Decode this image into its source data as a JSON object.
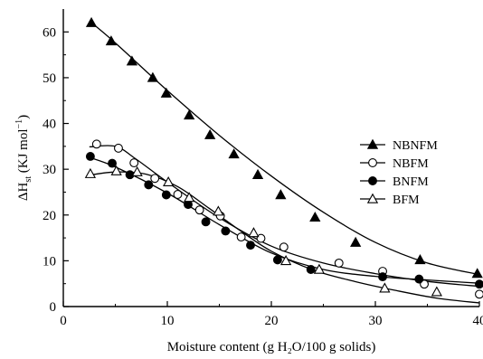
{
  "chart_data": {
    "type": "scatter",
    "xlabel": "Moisture content (g H₂O/100 g solids)",
    "ylabel": "ΔH",
    "ylabel_sub": "st",
    "ylabel_unit": " (KJ mol",
    "ylabel_sup": "−1",
    "ylabel_close": ")",
    "xlim": [
      0,
      40
    ],
    "ylim": [
      0,
      65
    ],
    "xticks": [
      0,
      10,
      20,
      30,
      40
    ],
    "yticks": [
      0,
      10,
      20,
      30,
      40,
      50,
      60
    ],
    "grid": false,
    "legend_position": "right",
    "series": [
      {
        "name": "NBNFM",
        "marker": "filled-triangle",
        "x": [
          2.7,
          4.6,
          6.6,
          8.6,
          9.9,
          12.1,
          14.1,
          16.4,
          18.7,
          20.9,
          24.2,
          28.1,
          34.3,
          39.8
        ],
        "y": [
          62,
          58,
          53.6,
          50,
          46.6,
          41.8,
          37.5,
          33.3,
          28.8,
          24.4,
          19.5,
          14,
          10.2,
          7.2
        ],
        "fit": [
          [
            2.5,
            62.4
          ],
          [
            5,
            57.6
          ],
          [
            10,
            47.2
          ],
          [
            15,
            37.4
          ],
          [
            20,
            28.5
          ],
          [
            25,
            20.6
          ],
          [
            30,
            14
          ],
          [
            35,
            9.5
          ],
          [
            40,
            7
          ]
        ]
      },
      {
        "name": "NBFM",
        "marker": "open-circle",
        "x": [
          3.2,
          5.3,
          6.8,
          8.8,
          11.0,
          13.1,
          15.1,
          17.1,
          19.0,
          21.2,
          26.5,
          30.7,
          34.7,
          40.0
        ],
        "y": [
          35.5,
          34.6,
          31.4,
          28,
          24.5,
          21.1,
          19.8,
          15.2,
          14.9,
          13,
          9.5,
          7.7,
          4.9,
          2.7
        ],
        "fit": [
          [
            2.5,
            34.9
          ],
          [
            5,
            35
          ],
          [
            7,
            32.2
          ],
          [
            10,
            27.2
          ],
          [
            15,
            19.4
          ],
          [
            20,
            13.2
          ],
          [
            25,
            9.5
          ],
          [
            30,
            7.2
          ],
          [
            35,
            5.5
          ],
          [
            40,
            4.4
          ]
        ]
      },
      {
        "name": "BNFM",
        "marker": "filled-circle",
        "x": [
          2.6,
          4.7,
          6.4,
          8.2,
          9.9,
          12.0,
          13.7,
          15.6,
          18.0,
          20.6,
          23.8,
          30.7,
          34.2,
          40.0
        ],
        "y": [
          32.8,
          31.3,
          28.8,
          26.6,
          24.4,
          22.3,
          18.5,
          16.5,
          13.4,
          10.2,
          8.1,
          6.5,
          6,
          4.9
        ],
        "fit": [
          [
            2.5,
            32.6
          ],
          [
            5,
            30.5
          ],
          [
            10,
            24.8
          ],
          [
            15,
            17.9
          ],
          [
            20,
            11.7
          ],
          [
            25,
            8.1
          ],
          [
            30,
            6.6
          ],
          [
            35,
            5.8
          ],
          [
            40,
            5.1
          ]
        ]
      },
      {
        "name": "BFM",
        "marker": "open-triangle",
        "x": [
          2.6,
          5.1,
          7.1,
          10.1,
          12.1,
          14.9,
          18.3,
          21.4,
          24.6,
          30.9,
          35.9
        ],
        "y": [
          29,
          29.6,
          29.4,
          27.2,
          23.8,
          20.8,
          16.1,
          10,
          8.1,
          4,
          3.2
        ],
        "fit": [
          [
            2.5,
            28.7
          ],
          [
            5,
            29.4
          ],
          [
            8,
            28.9
          ],
          [
            11,
            26.2
          ],
          [
            14,
            21.5
          ],
          [
            17,
            16.6
          ],
          [
            20,
            12.1
          ],
          [
            24,
            8
          ],
          [
            28,
            5.5
          ],
          [
            32,
            3.5
          ],
          [
            36,
            1.8
          ],
          [
            40,
            0.8
          ]
        ]
      }
    ]
  }
}
